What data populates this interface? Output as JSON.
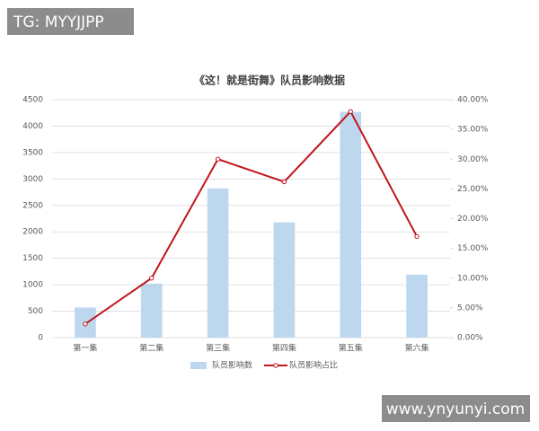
{
  "watermarks": [
    "TG: MYYJJPP",
    "www.ynyunyi.com"
  ],
  "chart_data": {
    "type": "bar",
    "title": "《这！就是街舞》队员影响数据",
    "categories": [
      "第一集",
      "第二集",
      "第三集",
      "第四集",
      "第五集",
      "第六集"
    ],
    "series": [
      {
        "name": "队员影响数",
        "type": "bar",
        "color": "#bdd7ee",
        "values": [
          570,
          1020,
          2820,
          2180,
          4270,
          1190
        ]
      },
      {
        "name": "队员影响占比",
        "type": "line",
        "axis": "y2",
        "color": "#c0161d",
        "values": [
          2.3,
          10,
          30,
          26.2,
          38,
          17
        ]
      }
    ],
    "ylim": [
      0,
      4500
    ],
    "yticks": [
      0,
      500,
      1000,
      1500,
      2000,
      2500,
      3000,
      3500,
      4000,
      4500
    ],
    "y2lim": [
      0,
      40
    ],
    "y2ticks": [
      {
        "value": 0,
        "label": "0.00%"
      },
      {
        "value": 5,
        "label": "5.00%"
      },
      {
        "value": 10,
        "label": "10.00%"
      },
      {
        "value": 15,
        "label": "15.00%"
      },
      {
        "value": 20,
        "label": "20.00%"
      },
      {
        "value": 25,
        "label": "25.00%"
      },
      {
        "value": 30,
        "label": "30.00%"
      },
      {
        "value": 35,
        "label": "35.00%"
      },
      {
        "value": 40,
        "label": "40.00%"
      }
    ],
    "grid": true,
    "legend": "bottom"
  }
}
